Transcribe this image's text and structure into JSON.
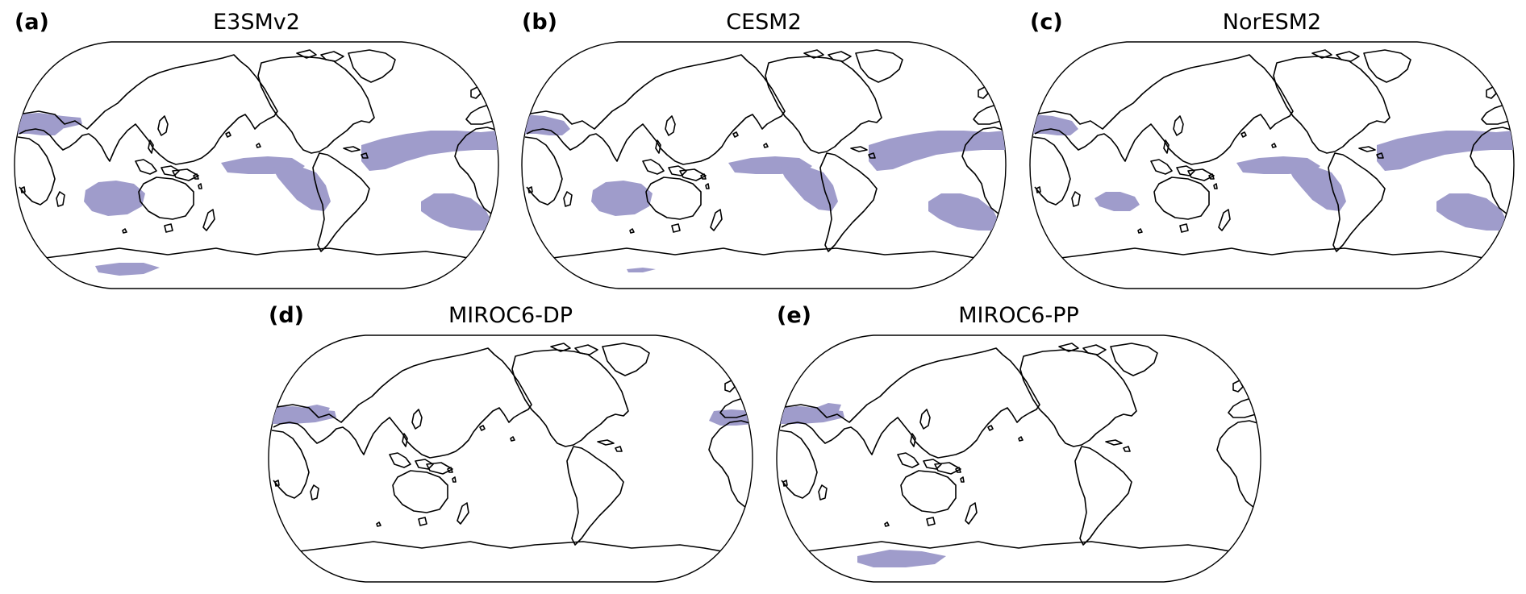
{
  "colors": {
    "shading": "#9f9ccb",
    "coast": "#000000",
    "background": "#ffffff"
  },
  "panels": [
    {
      "id": "a",
      "letter": "(a)",
      "title": "E3SMv2",
      "regions": [
        "w-indian-arabia",
        "nw-africa-band",
        "se-indian-ocean",
        "central-pacific-spur",
        "se-pacific-tongue",
        "caribbean-n-atlantic",
        "south-atlantic",
        "antarctic-coast"
      ]
    },
    {
      "id": "b",
      "letter": "(b)",
      "title": "CESM2",
      "regions": [
        "w-indian-arabia",
        "se-indian-ocean",
        "central-pacific-spur",
        "se-pacific-tongue",
        "caribbean-n-atlantic",
        "south-atlantic",
        "antarctic-sliver"
      ]
    },
    {
      "id": "c",
      "letter": "(c)",
      "title": "NorESM2",
      "regions": [
        "w-indian-arabia",
        "se-indian-small",
        "central-pacific-spur",
        "se-pacific-tongue",
        "caribbean-n-atlantic",
        "south-atlantic"
      ]
    },
    {
      "id": "d",
      "letter": "(d)",
      "title": "MIROC6-DP",
      "regions": [
        "arabia-red-sea",
        "nw-africa-band",
        "west-africa-edge"
      ]
    },
    {
      "id": "e",
      "letter": "(e)",
      "title": "MIROC6-PP",
      "regions": [
        "arabia-red-sea-wide",
        "nw-africa-band",
        "antarctic-coast-wide"
      ]
    }
  ]
}
